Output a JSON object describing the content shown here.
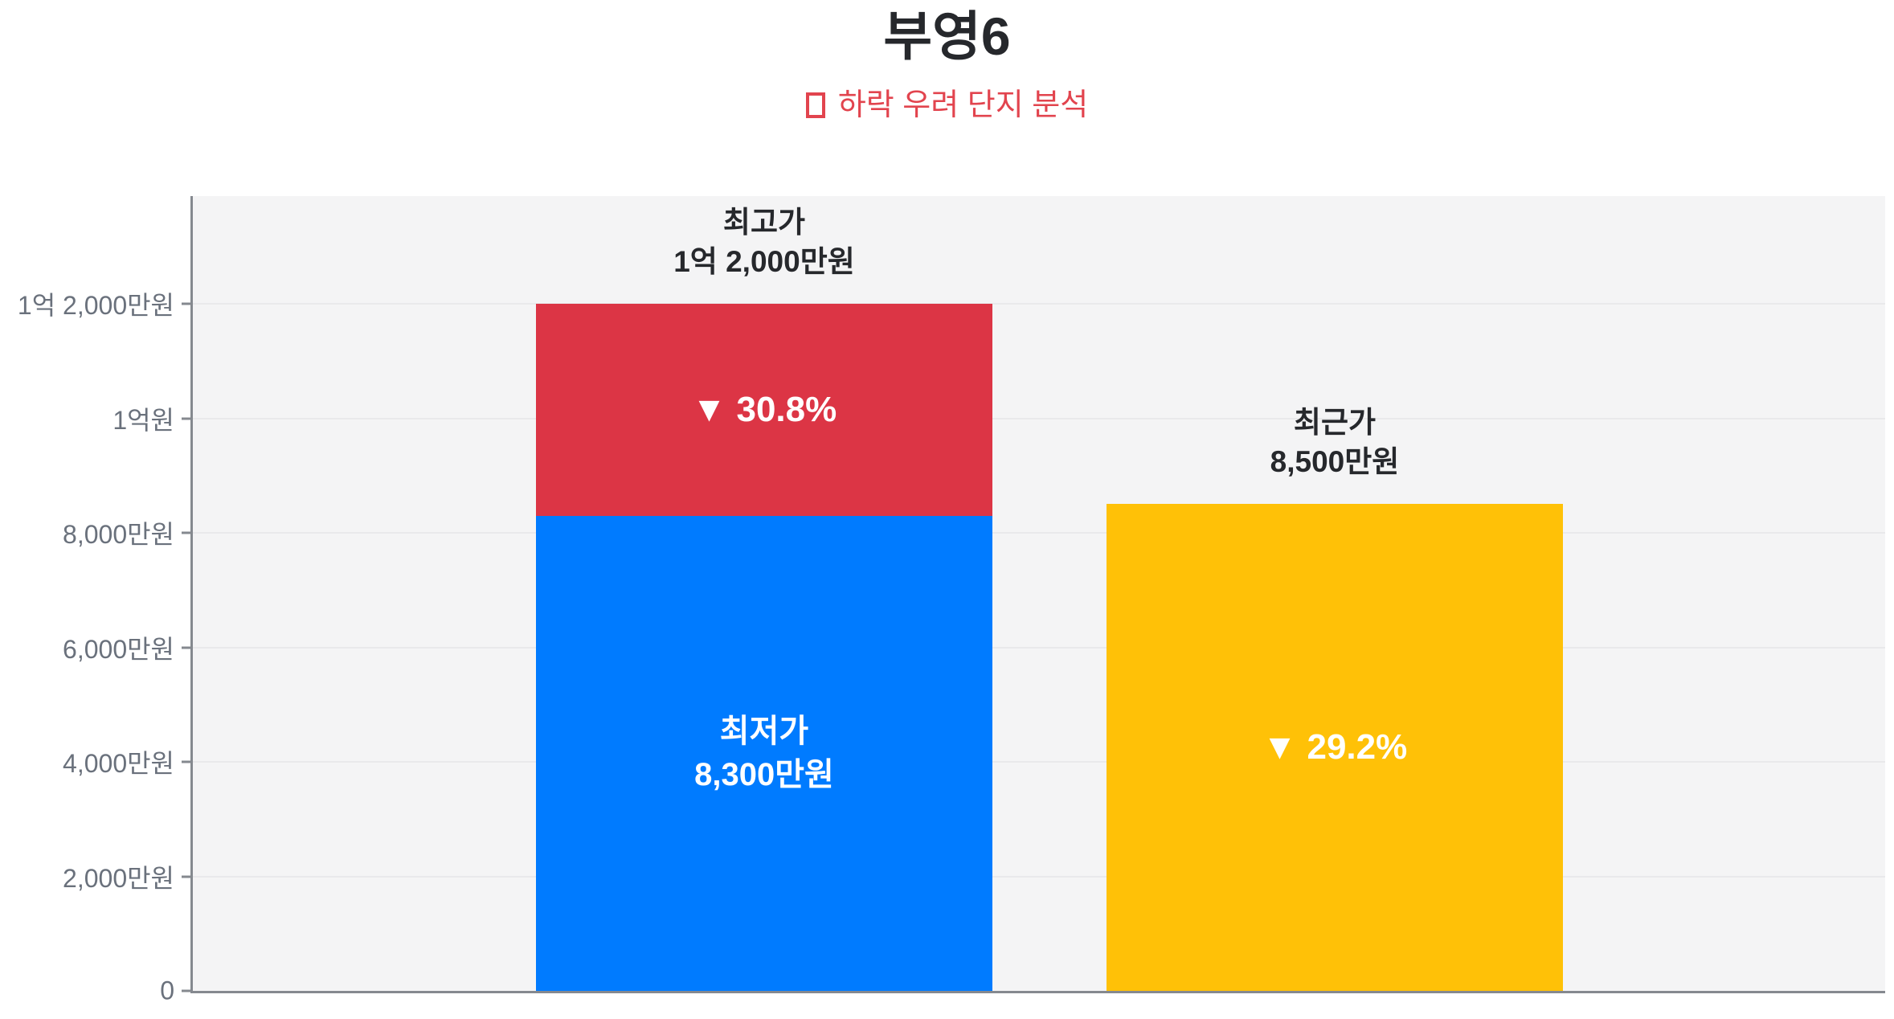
{
  "chart_data": {
    "type": "bar",
    "stacked": true,
    "title": "부영6",
    "subtitle_marker": "□",
    "subtitle": "하락 우려 단지 분석",
    "unit": "만원",
    "ylim": [
      0,
      13880
    ],
    "grid": true,
    "colors": {
      "background": "#ffffff",
      "plot_background": "#f4f4f5",
      "gridline": "#e9e9eb",
      "axis": "#85898f",
      "tick_label": "#6a717c",
      "title": "#26282c",
      "subtitle": "#e2444e",
      "lowest_price_bar": "#007bff",
      "decline_bar": "#dc3545",
      "recent_price_bar": "#ffc107",
      "bar_inner_text": "#ffffff"
    },
    "y_axis_ticks": [
      {
        "label": "1억 2,000만원",
        "value": 12000
      },
      {
        "label": "1억원",
        "value": 10000
      },
      {
        "label": "8,000만원",
        "value": 8000
      },
      {
        "label": "6,000만원",
        "value": 6000
      },
      {
        "label": "4,000만원",
        "value": 4000
      },
      {
        "label": "2,000만원",
        "value": 2000
      },
      {
        "label": "0",
        "value": 0
      }
    ],
    "bars": [
      {
        "name": "highest-vs-lowest-bar",
        "top_label_lines": [
          "최고가",
          "1억 2,000만원"
        ],
        "total_value": 12000,
        "segments": [
          {
            "name": "lowest-price-segment",
            "value": 8300,
            "color": "#007bff",
            "label_lines": [
              "최저가",
              "8,300만원"
            ]
          },
          {
            "name": "decline-percent-segment",
            "value": 3700,
            "color": "#dc3545",
            "label_lines": [
              "▼ 30.8%"
            ]
          }
        ]
      },
      {
        "name": "recent-price-bar",
        "top_label_lines": [
          "최근가",
          "8,500만원"
        ],
        "total_value": 8500,
        "segments": [
          {
            "name": "recent-price-segment",
            "value": 8500,
            "color": "#ffc107",
            "label_lines": [
              "▼ 29.2%"
            ]
          }
        ]
      }
    ]
  }
}
